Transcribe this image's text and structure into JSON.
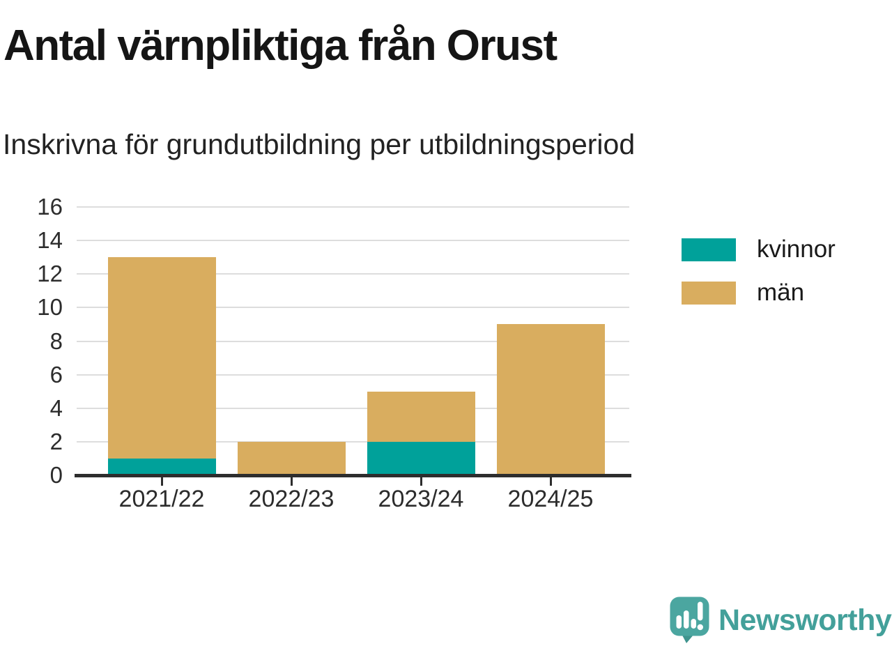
{
  "header": {
    "title": "Antal värnpliktiga från Orust",
    "subtitle": "Inskrivna för grundutbildning per utbildningsperiod"
  },
  "chart_data": {
    "type": "bar",
    "stacked": true,
    "title": "Antal värnpliktiga från Orust",
    "subtitle": "Inskrivna för grundutbildning per utbildningsperiod",
    "categories": [
      "2021/22",
      "2022/23",
      "2023/24",
      "2024/25"
    ],
    "series": [
      {
        "name": "kvinnor",
        "color": "#00A19A",
        "values": [
          1,
          0,
          2,
          0
        ]
      },
      {
        "name": "män",
        "color": "#D9AD5F",
        "values": [
          12,
          2,
          3,
          9
        ]
      }
    ],
    "stack_totals": [
      13,
      2,
      5,
      9
    ],
    "xlabel": "",
    "ylabel": "",
    "ylim": [
      0,
      16
    ],
    "ytick_step": 2,
    "ytick_labels": [
      "0",
      "2",
      "4",
      "6",
      "8",
      "10",
      "12",
      "14",
      "16"
    ],
    "grid": "horizontal-only",
    "gridline_color": "#DDDDDD",
    "axis_color": "#2D2D2D",
    "legend_position": "right"
  },
  "footer": {
    "brand": "Newsworthy",
    "brand_color": "#43A09A"
  }
}
